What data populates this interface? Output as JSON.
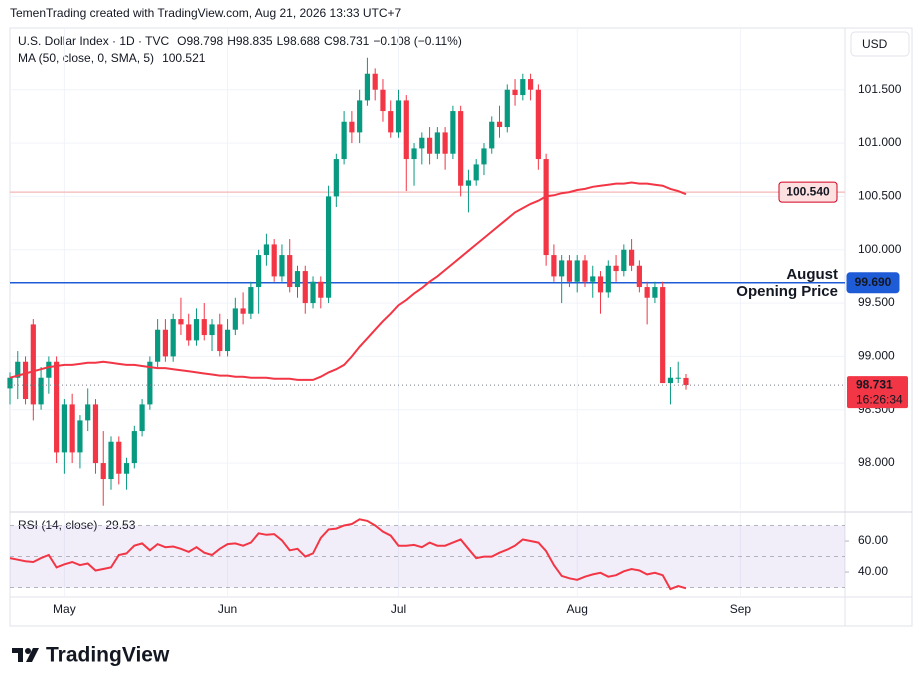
{
  "chart_data": {
    "type": "candlestick",
    "header": "TemenTrading created with TradingView.com, Aug 21, 2026 13:33 UTC+7",
    "title": "U.S. Dollar Index · 1D · TVC",
    "legend_keys": [
      "O",
      "H",
      "L",
      "C"
    ],
    "change": "−0.108 (−0.11%)",
    "currency": "USD",
    "brand": "TradingView",
    "up_color": "#089981",
    "down_color": "#f23645",
    "grid": true,
    "categories": [
      null,
      null,
      null,
      null,
      null,
      null,
      null,
      "May",
      null,
      null,
      null,
      null,
      null,
      null,
      null,
      null,
      null,
      null,
      null,
      null,
      null,
      null,
      null,
      null,
      null,
      null,
      null,
      null,
      "Jun",
      null,
      null,
      null,
      null,
      null,
      null,
      null,
      null,
      null,
      null,
      null,
      null,
      null,
      null,
      null,
      null,
      null,
      null,
      null,
      null,
      null,
      "Jul",
      null,
      null,
      null,
      null,
      null,
      null,
      null,
      null,
      null,
      null,
      null,
      null,
      null,
      null,
      null,
      null,
      null,
      null,
      null,
      null,
      null,
      null,
      "Aug",
      null,
      null,
      null,
      null,
      null,
      null,
      null,
      null,
      null,
      null,
      null,
      null,
      null,
      null,
      null,
      null,
      null,
      null,
      null,
      null,
      "Sep"
    ],
    "open": [
      98.7,
      98.8,
      98.95,
      99.3,
      98.55,
      98.8,
      98.95,
      98.1,
      98.55,
      98.1,
      98.4,
      98.55,
      98.0,
      97.85,
      98.2,
      97.9,
      98.0,
      98.3,
      98.55,
      98.95,
      99.25,
      99.0,
      99.35,
      99.3,
      99.15,
      99.35,
      99.2,
      99.3,
      99.05,
      99.25,
      99.45,
      99.4,
      99.65,
      99.95,
      100.05,
      99.75,
      99.95,
      99.65,
      99.8,
      99.5,
      99.7,
      99.55,
      100.5,
      100.85,
      101.2,
      101.1,
      101.4,
      101.65,
      101.5,
      101.3,
      101.1,
      101.4,
      100.85,
      100.95,
      101.05,
      100.9,
      101.1,
      100.9,
      101.3,
      100.6,
      100.65,
      100.8,
      100.95,
      101.2,
      101.15,
      101.5,
      101.45,
      101.6,
      101.5,
      100.85,
      99.95,
      99.75,
      99.9,
      99.7,
      99.9,
      99.7,
      99.75,
      99.6,
      99.85,
      99.8,
      100.0,
      99.85,
      99.65,
      99.55,
      99.65,
      98.75,
      98.8,
      98.798,
      null,
      null,
      null,
      null,
      null,
      null,
      null
    ],
    "high": [
      98.85,
      99.05,
      99.0,
      99.35,
      98.9,
      99.0,
      99.0,
      98.6,
      98.65,
      98.45,
      98.7,
      98.6,
      98.3,
      98.25,
      98.25,
      98.05,
      98.35,
      98.6,
      99.0,
      99.35,
      99.35,
      99.4,
      99.55,
      99.4,
      99.45,
      99.5,
      99.35,
      99.4,
      99.35,
      99.55,
      99.6,
      99.7,
      100.0,
      100.15,
      100.1,
      100.05,
      100.1,
      99.85,
      99.85,
      99.75,
      99.75,
      100.6,
      100.9,
      101.3,
      101.3,
      101.5,
      101.8,
      101.7,
      101.6,
      101.4,
      101.5,
      101.45,
      101.0,
      101.1,
      101.15,
      101.15,
      101.15,
      101.35,
      101.35,
      100.75,
      100.85,
      101.0,
      101.25,
      101.35,
      101.55,
      101.6,
      101.65,
      101.65,
      101.55,
      100.9,
      100.05,
      99.95,
      99.95,
      99.95,
      99.95,
      99.85,
      99.8,
      99.9,
      99.95,
      100.05,
      100.1,
      99.9,
      99.7,
      99.7,
      99.7,
      98.9,
      98.95,
      98.835,
      null,
      null,
      null,
      null,
      null,
      null,
      null
    ],
    "low": [
      98.55,
      98.6,
      98.55,
      98.4,
      98.5,
      98.65,
      98.0,
      97.9,
      98.0,
      97.95,
      98.3,
      97.9,
      97.6,
      97.75,
      97.8,
      97.75,
      97.95,
      98.25,
      98.5,
      98.9,
      98.95,
      98.95,
      99.2,
      99.1,
      99.1,
      99.15,
      99.05,
      99.0,
      99.0,
      99.2,
      99.3,
      99.35,
      99.4,
      99.85,
      99.7,
      99.7,
      99.6,
      99.55,
      99.4,
      99.45,
      99.45,
      99.5,
      100.4,
      100.8,
      101.0,
      101.0,
      101.35,
      101.4,
      101.2,
      101.05,
      101.05,
      100.55,
      100.6,
      100.8,
      100.8,
      100.85,
      100.75,
      100.85,
      100.5,
      100.35,
      100.6,
      100.7,
      100.9,
      101.05,
      101.1,
      101.35,
      101.4,
      101.4,
      100.75,
      99.85,
      99.7,
      99.5,
      99.65,
      99.6,
      99.65,
      99.55,
      99.4,
      99.55,
      99.7,
      99.75,
      99.8,
      99.6,
      99.3,
      99.5,
      98.75,
      98.55,
      98.75,
      98.688,
      null,
      null,
      null,
      null,
      null,
      null,
      null
    ],
    "close": [
      98.8,
      98.95,
      98.6,
      98.55,
      98.8,
      98.95,
      98.1,
      98.55,
      98.1,
      98.4,
      98.55,
      98.0,
      97.85,
      98.2,
      97.9,
      98.0,
      98.3,
      98.55,
      98.95,
      99.25,
      99.0,
      99.35,
      99.3,
      99.15,
      99.35,
      99.2,
      99.3,
      99.05,
      99.25,
      99.45,
      99.4,
      99.65,
      99.95,
      100.05,
      99.75,
      99.95,
      99.65,
      99.8,
      99.5,
      99.7,
      99.55,
      100.5,
      100.85,
      101.2,
      101.1,
      101.4,
      101.65,
      101.5,
      101.3,
      101.1,
      101.4,
      100.85,
      100.95,
      101.05,
      100.9,
      101.1,
      100.9,
      101.3,
      100.6,
      100.65,
      100.8,
      100.95,
      101.2,
      101.15,
      101.5,
      101.45,
      101.6,
      101.5,
      100.85,
      99.95,
      99.75,
      99.9,
      99.7,
      99.9,
      99.7,
      99.75,
      99.6,
      99.85,
      99.8,
      100.0,
      99.85,
      99.65,
      99.55,
      99.65,
      98.75,
      98.8,
      98.8,
      98.731,
      null,
      null,
      null,
      null,
      null,
      null,
      null
    ],
    "ylim": [
      97.56,
      102.06
    ],
    "yticks": [
      {
        "value": 98,
        "label": "98.000"
      },
      {
        "value": 98.5,
        "label": "98.500"
      },
      {
        "value": 99,
        "label": "99.000"
      },
      {
        "value": 99.5,
        "label": "99.500"
      },
      {
        "value": 100,
        "label": "100.000"
      },
      {
        "value": 100.5,
        "label": "100.500"
      },
      {
        "value": 101,
        "label": "101.000"
      },
      {
        "value": 101.5,
        "label": "101.500"
      }
    ],
    "ma": {
      "name": "MA (50, close, 0, SMA, 5)",
      "color": "#f23645",
      "values": [
        98.8,
        98.82,
        98.84,
        98.86,
        98.88,
        98.9,
        98.91,
        98.92,
        98.92,
        98.93,
        98.94,
        98.94,
        98.95,
        98.94,
        98.93,
        98.92,
        98.92,
        98.91,
        98.9,
        98.89,
        98.89,
        98.88,
        98.87,
        98.86,
        98.85,
        98.84,
        98.83,
        98.82,
        98.82,
        98.81,
        98.81,
        98.8,
        98.8,
        98.8,
        98.79,
        98.79,
        98.79,
        98.78,
        98.78,
        98.78,
        98.81,
        98.85,
        98.88,
        98.92,
        99.0,
        99.09,
        99.17,
        99.25,
        99.33,
        99.4,
        99.48,
        99.53,
        99.59,
        99.64,
        99.7,
        99.75,
        99.81,
        99.87,
        99.93,
        99.99,
        100.05,
        100.11,
        100.17,
        100.23,
        100.29,
        100.35,
        100.39,
        100.43,
        100.46,
        100.5,
        100.51,
        100.53,
        100.54,
        100.56,
        100.57,
        100.59,
        100.6,
        100.61,
        100.62,
        100.62,
        100.63,
        100.62,
        100.62,
        100.61,
        100.6,
        100.57,
        100.55,
        100.521,
        null,
        null,
        null,
        null,
        null,
        null,
        null
      ]
    },
    "hlines": [
      {
        "value": 100.54,
        "label": "100.540",
        "color": "#f4b6b4",
        "tag_fill": "#fde0e0",
        "tag_color": "#d1001f"
      },
      {
        "value": 99.69,
        "label": "99.690",
        "color": "#1e5bd6",
        "tag_fill": "#1e5bd6",
        "tag_color": "#ffffff",
        "annotation": [
          "August",
          "Opening Price"
        ]
      }
    ],
    "countdown": "16:26:34",
    "rsi": {
      "name": "RSI (14, close)",
      "color": "#f23645",
      "ylim": [
        25.2,
        76.8
      ],
      "yticks": [
        {
          "value": 40,
          "label": "40.00"
        },
        {
          "value": 60,
          "label": "60.00"
        }
      ],
      "levels": [
        70,
        50,
        30
      ],
      "values": [
        49,
        48,
        47,
        46.5,
        49,
        51,
        43,
        45,
        46.5,
        44.5,
        45.5,
        41,
        42,
        43,
        51,
        52,
        57,
        58.5,
        54,
        58,
        56,
        56.5,
        55,
        53,
        56,
        52.5,
        51,
        55,
        58,
        58.5,
        57,
        59,
        65,
        64,
        64.5,
        60.5,
        54,
        55,
        50,
        52,
        62,
        67.5,
        68,
        70,
        71,
        74,
        73,
        70,
        66,
        63.5,
        57,
        57,
        57.5,
        56,
        59,
        57,
        57,
        59,
        61,
        55,
        49,
        50,
        50,
        52.5,
        54.5,
        57,
        61,
        60,
        59,
        53.5,
        44.5,
        37.5,
        36,
        35,
        37,
        38.5,
        39.5,
        37,
        38,
        40.5,
        42,
        41,
        38.5,
        39.5,
        38,
        29,
        31,
        29.53,
        null,
        null,
        null,
        null,
        null,
        null,
        null
      ]
    }
  }
}
